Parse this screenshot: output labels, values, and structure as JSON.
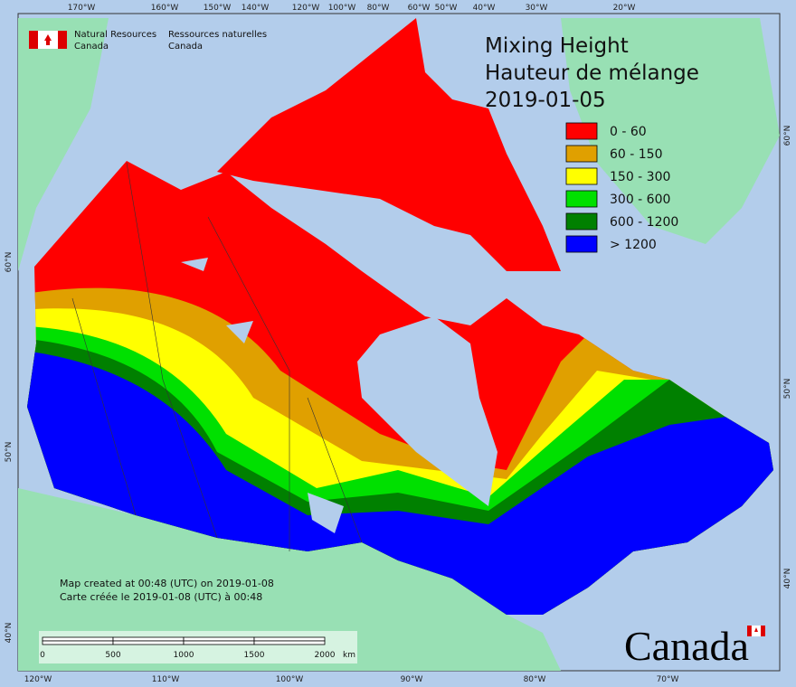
{
  "header": {
    "org_en": [
      "Natural Resources",
      "Canada"
    ],
    "org_fr": [
      "Ressources naturelles",
      "Canada"
    ]
  },
  "title": [
    "Mixing Height",
    "Hauteur de mélange",
    "2019-01-05"
  ],
  "legend": [
    {
      "label": "0 - 60",
      "color": "#ff0000"
    },
    {
      "label": "60 - 150",
      "color": "#e0a000"
    },
    {
      "label": "150 - 300",
      "color": "#ffff00"
    },
    {
      "label": "300 - 600",
      "color": "#00e000"
    },
    {
      "label": "600 - 1200",
      "color": "#008000"
    },
    {
      "label": "> 1200",
      "color": "#0000ff"
    }
  ],
  "graticule": {
    "top": [
      "170°W",
      "160°W",
      "150°W",
      "140°W",
      "120°W",
      "100°W",
      "80°W",
      "60°W",
      "50°W",
      "40°W",
      "30°W",
      "20°W"
    ],
    "bottom": [
      "120°W",
      "110°W",
      "100°W",
      "90°W",
      "80°W",
      "70°W"
    ],
    "left": [
      "60°N",
      "50°N",
      "40°N"
    ],
    "right": [
      "60°N",
      "50°N",
      "40°N"
    ]
  },
  "credits": [
    "Map created at 00:48 (UTC) on 2019-01-08",
    "Carte créée le 2019-01-08 (UTC) à 00:48"
  ],
  "scale": {
    "labels": [
      "0",
      "500",
      "1000",
      "1500",
      "2000"
    ],
    "unit": "km"
  },
  "wordmark": "Canada"
}
